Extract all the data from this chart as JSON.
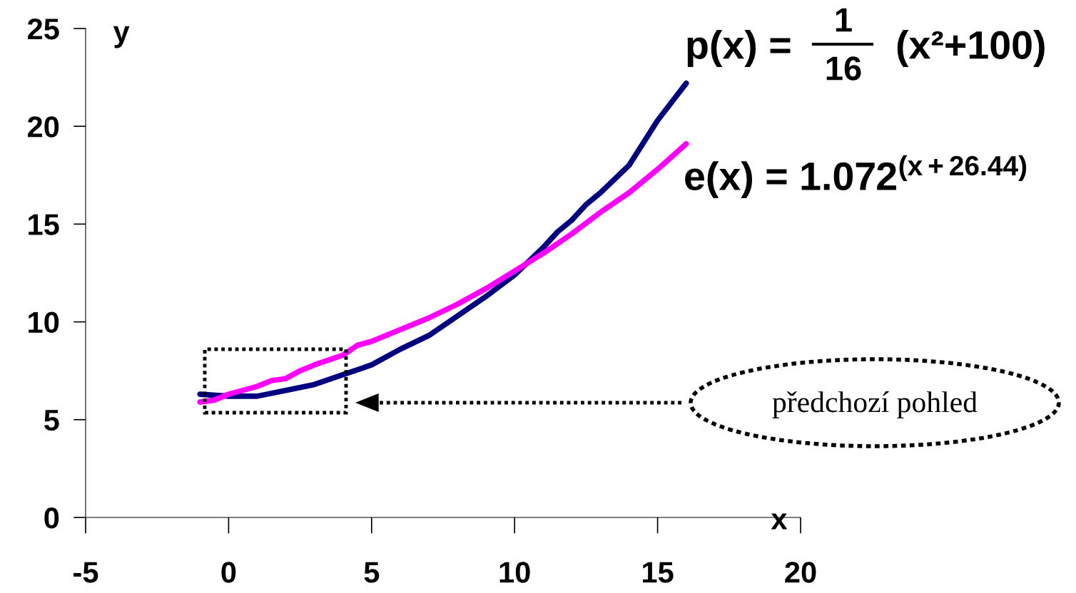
{
  "chart_data": {
    "type": "line",
    "xlabel": "x",
    "ylabel": "y",
    "xlim": [
      -5,
      20
    ],
    "xticks": [
      -5,
      0,
      5,
      10,
      15,
      20
    ],
    "ylim": [
      0,
      25
    ],
    "yticks": [
      0,
      5,
      10,
      15,
      20,
      25
    ],
    "grid": false,
    "legend": false,
    "marker": "none",
    "line_style": "solid",
    "series": [
      {
        "color": "#000080",
        "x": [
          -1,
          0,
          1,
          2,
          3,
          4,
          5,
          6,
          7,
          8,
          9,
          10,
          11,
          11.5,
          12,
          12.5,
          13,
          14,
          15,
          16
        ],
        "values": [
          6.3,
          6.2,
          6.2,
          6.5,
          6.8,
          7.3,
          7.8,
          8.6,
          9.3,
          10.3,
          11.3,
          12.4,
          13.8,
          14.6,
          15.2,
          16.0,
          16.6,
          18.0,
          20.3,
          22.2
        ]
      },
      {
        "color": "#ff00ff",
        "x": [
          -1,
          -0.5,
          0,
          1,
          1.5,
          2,
          2.5,
          3,
          4,
          4.5,
          5,
          6,
          7,
          8,
          9,
          10,
          11,
          12,
          13,
          14,
          15,
          16
        ],
        "values": [
          5.9,
          6.0,
          6.3,
          6.7,
          7.0,
          7.1,
          7.5,
          7.8,
          8.3,
          8.8,
          9.0,
          9.6,
          10.2,
          10.9,
          11.7,
          12.6,
          13.5,
          14.5,
          15.6,
          16.6,
          17.8,
          19.1
        ]
      }
    ],
    "annotations": [
      "p(x) =",
      "1",
      "16",
      "(x²+100)",
      "e(x) = 1.072$^{(x+26.44)}$",
      "předchozí pohled"
    ]
  }
}
